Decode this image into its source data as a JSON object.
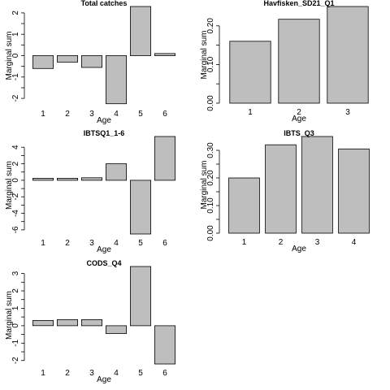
{
  "chart_data": [
    {
      "type": "bar",
      "title": "Total catches",
      "xlabel": "Age",
      "ylabel": "Marginal sum",
      "categories": [
        "1",
        "2",
        "3",
        "4",
        "5",
        "6"
      ],
      "values": [
        -0.6,
        -0.3,
        -0.55,
        -2.25,
        2.3,
        0.1
      ],
      "ylim": [
        -2.3,
        2.3
      ],
      "yticks": [
        "-2",
        "-1",
        "0",
        "1",
        "2"
      ]
    },
    {
      "type": "bar",
      "title": "Havfisken_SD21_Q1",
      "xlabel": "Age",
      "ylabel": "Marginal sum",
      "categories": [
        "1",
        "2",
        "3"
      ],
      "values": [
        0.16,
        0.217,
        0.25
      ],
      "ylim": [
        0,
        0.25
      ],
      "yticks": [
        "0.00",
        "0.10",
        "0.20"
      ]
    },
    {
      "type": "bar",
      "title": "IBTSQ1_1-6",
      "xlabel": "Age",
      "ylabel": "Marginal sum",
      "categories": [
        "1",
        "2",
        "3",
        "4",
        "5",
        "6"
      ],
      "values": [
        0.25,
        0.25,
        0.3,
        2.0,
        -6.5,
        5.3
      ],
      "ylim": [
        -6.5,
        5.3
      ],
      "yticks": [
        "-6",
        "-4",
        "-2",
        "0",
        "2",
        "4"
      ]
    },
    {
      "type": "bar",
      "title": "IBTS_Q3",
      "xlabel": "Age",
      "ylabel": "Marginal sum",
      "categories": [
        "1",
        "2",
        "3",
        "4"
      ],
      "values": [
        0.2,
        0.32,
        0.35,
        0.305
      ],
      "ylim": [
        0,
        0.35
      ],
      "yticks": [
        "0.00",
        "0.10",
        "0.20",
        "0.30"
      ]
    },
    {
      "type": "bar",
      "title": "CODS_Q4",
      "xlabel": "Age",
      "ylabel": "Marginal sum",
      "categories": [
        "1",
        "2",
        "3",
        "4",
        "5",
        "6"
      ],
      "values": [
        0.3,
        0.35,
        0.35,
        -0.45,
        3.4,
        -2.2
      ],
      "ylim": [
        -2.2,
        3.4
      ],
      "yticks": [
        "-2",
        "-1",
        "0",
        "1",
        "2",
        "3"
      ]
    }
  ]
}
